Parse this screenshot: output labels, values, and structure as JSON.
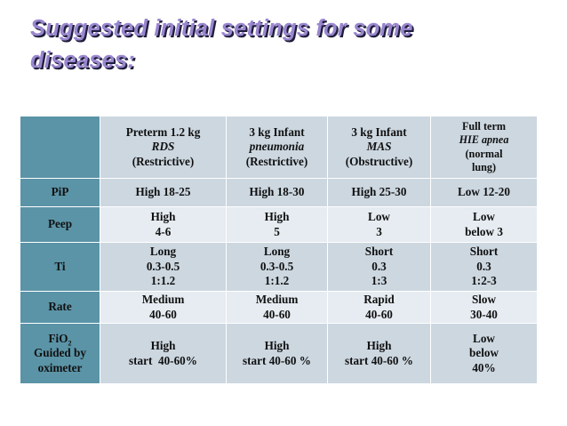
{
  "title": {
    "line1": "Suggested  initial settings for some",
    "line2": "diseases:"
  },
  "table": {
    "headers": [
      {
        "line1": "Preterm 1.2 kg",
        "line2": "RDS",
        "line3": "(Restrictive)"
      },
      {
        "line1": "3 kg Infant",
        "line2": "pneumonia",
        "line3": "(Restrictive)"
      },
      {
        "line1": "3 kg Infant",
        "line2": "MAS",
        "line3": "(Obstructive)"
      },
      {
        "line1": "Full term",
        "line2": "HIE apnea",
        "line3": "(normal",
        "line4": "lung)"
      }
    ],
    "rows": {
      "pip": {
        "label": "PiP",
        "cells": [
          "High 18-25",
          "High 18-30",
          "High 25-30",
          "Low 12-20"
        ]
      },
      "peep": {
        "label": "Peep",
        "cells": [
          {
            "a": "High",
            "b": "4-6"
          },
          {
            "a": "High",
            "b": "5"
          },
          {
            "a": "Low",
            "b": "3"
          },
          {
            "a": "Low",
            "b": "below 3"
          }
        ]
      },
      "ti": {
        "label": "Ti",
        "cells": [
          {
            "a": "Long",
            "b": "0.3-0.5",
            "c": "1:1.2"
          },
          {
            "a": "Long",
            "b": "0.3-0.5",
            "c": "1:1.2"
          },
          {
            "a": "Short",
            "b": "0.3",
            "c": "1:3"
          },
          {
            "a": "Short",
            "b": "0.3",
            "c": "1:2-3"
          }
        ]
      },
      "rate": {
        "label": "Rate",
        "cells": [
          {
            "a": "Medium",
            "b": "40-60"
          },
          {
            "a": "Medium",
            "b": "40-60"
          },
          {
            "a": "Rapid",
            "b": "40-60"
          },
          {
            "a": "Slow",
            "b": "30-40"
          }
        ]
      },
      "fio2": {
        "label_main": "FiO",
        "label_sub": "2",
        "label_line2": "Guided by",
        "label_line3": "oximeter",
        "cells": [
          {
            "a": "High",
            "b": "start  40-60%"
          },
          {
            "a": "High",
            "b": "start 40-60 %"
          },
          {
            "a": "High",
            "b": "start 40-60 %"
          },
          {
            "a": "Low",
            "b": "below",
            "c": "40%"
          }
        ]
      }
    }
  }
}
